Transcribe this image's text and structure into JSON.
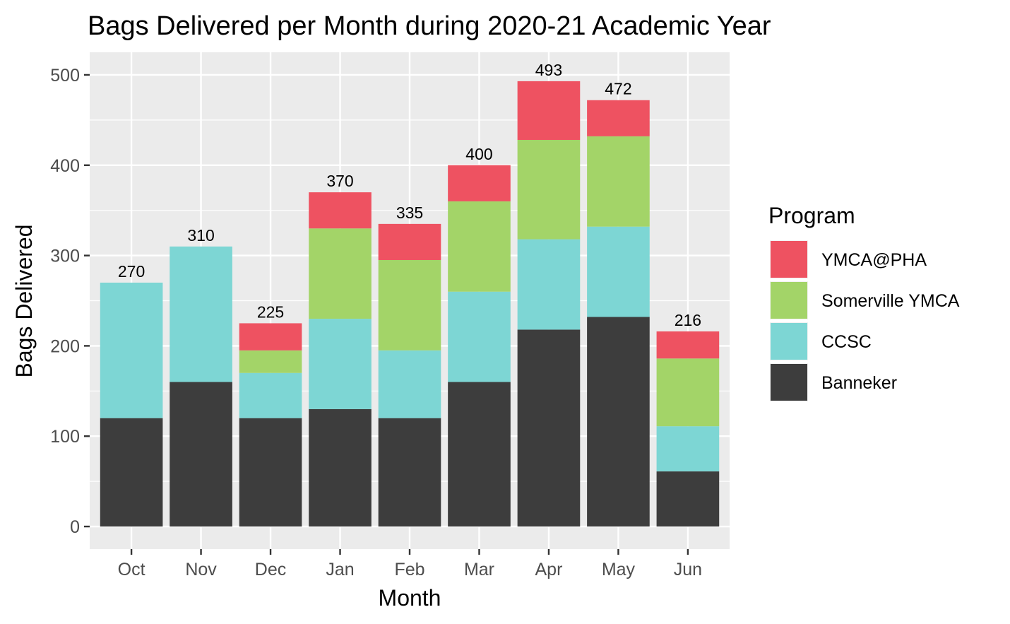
{
  "chart_data": {
    "type": "bar",
    "stacked": true,
    "title": "Bags Delivered per Month during 2020-21 Academic Year",
    "xlabel": "Month",
    "ylabel": "Bags Delivered",
    "ylim": [
      -25,
      525
    ],
    "yticks": [
      0,
      100,
      200,
      300,
      400,
      500
    ],
    "grid": true,
    "categories": [
      "Oct",
      "Nov",
      "Dec",
      "Jan",
      "Feb",
      "Mar",
      "Apr",
      "May",
      "Jun"
    ],
    "series": [
      {
        "name": "Banneker",
        "color": "#3d3d3d",
        "values": [
          120,
          160,
          120,
          130,
          120,
          160,
          218,
          232,
          61
        ]
      },
      {
        "name": "CCSC",
        "color": "#7dd6d4",
        "values": [
          150,
          150,
          50,
          100,
          75,
          100,
          100,
          100,
          50
        ]
      },
      {
        "name": "Somerville YMCA",
        "color": "#a3d468",
        "values": [
          0,
          0,
          25,
          100,
          100,
          100,
          110,
          100,
          75
        ]
      },
      {
        "name": "YMCA@PHA",
        "color": "#ee5261",
        "values": [
          0,
          0,
          30,
          40,
          40,
          40,
          65,
          40,
          30
        ]
      }
    ],
    "totals": [
      "270",
      "310",
      "225",
      "370",
      "335",
      "400",
      "493",
      "472",
      "216"
    ],
    "legend": {
      "title": "Program",
      "position": "right",
      "items": [
        "YMCA@PHA",
        "Somerville YMCA",
        "CCSC",
        "Banneker"
      ]
    }
  }
}
